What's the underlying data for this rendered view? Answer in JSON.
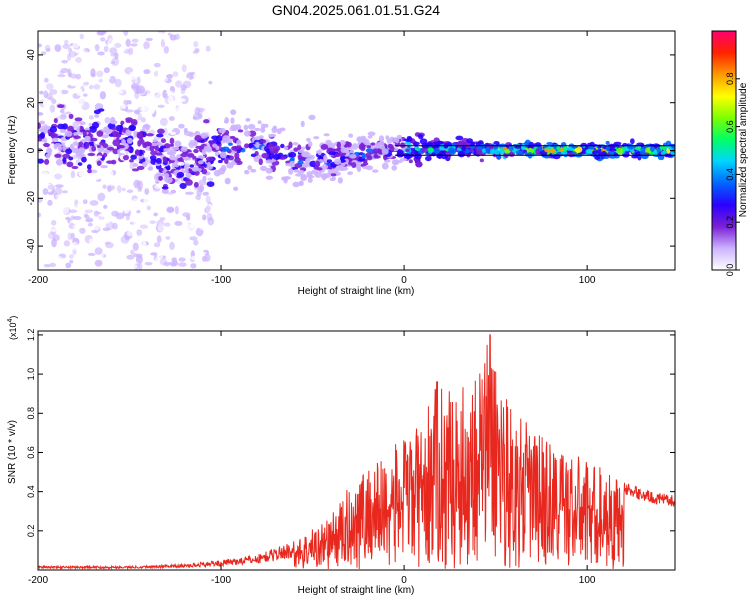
{
  "chart_data": [
    {
      "type": "heatmap",
      "title": "GN04.2025.061.01.51.G24",
      "xlabel": "Height of straight line (km)",
      "ylabel": "Frequency (Hz)",
      "xlim": [
        -200,
        148
      ],
      "ylim": [
        -50,
        50
      ],
      "x_ticks": [
        -200,
        -100,
        0,
        100
      ],
      "y_ticks": [
        -40,
        -20,
        0,
        20,
        40
      ],
      "grid": false,
      "colorbar": {
        "label": "Normalized spectral amplitude",
        "range": [
          0.0,
          1.0
        ],
        "ticks": [
          "0.0",
          "0.2",
          "0.4",
          "0.6",
          "0.8"
        ],
        "colors": [
          "#ffffff",
          "#ccb3ff",
          "#7a1fd6",
          "#2a00ff",
          "#0066ff",
          "#00d4ff",
          "#00ff66",
          "#7cff00",
          "#ffff00",
          "#ff9900",
          "#ff2200",
          "#ff006e"
        ]
      },
      "ridge_center": [
        {
          "x": -200,
          "y": 5
        },
        {
          "x": -180,
          "y": 4
        },
        {
          "x": -160,
          "y": 3
        },
        {
          "x": -140,
          "y": 1
        },
        {
          "x": -130,
          "y": -5
        },
        {
          "x": -120,
          "y": -4
        },
        {
          "x": -100,
          "y": 0
        },
        {
          "x": -80,
          "y": 2
        },
        {
          "x": -60,
          "y": -4
        },
        {
          "x": -40,
          "y": -4
        },
        {
          "x": -20,
          "y": -1
        },
        {
          "x": 0,
          "y": 1
        },
        {
          "x": 50,
          "y": 0.5
        },
        {
          "x": 100,
          "y": 0
        },
        {
          "x": 148,
          "y": 0
        }
      ],
      "reference_lines_hz": [
        2,
        -2
      ]
    },
    {
      "type": "line",
      "xlabel": "Height of straight line (km)",
      "ylabel": "SNR (10 * v/v)",
      "y_scale_note": "(x10",
      "y_scale_exponent": "4",
      "xlim": [
        -200,
        148
      ],
      "ylim": [
        0,
        1.22
      ],
      "x_ticks": [
        -200,
        -100,
        0,
        100
      ],
      "y_ticks": [
        "0.2",
        "0.4",
        "0.6",
        "0.8",
        "1.0",
        "1.2"
      ],
      "grid": false,
      "color": "#e8281e",
      "series": [
        {
          "values": [
            {
              "x": -200,
              "y": 0.02
            },
            {
              "x": -150,
              "y": 0.02
            },
            {
              "x": -120,
              "y": 0.03
            },
            {
              "x": -100,
              "y": 0.05
            },
            {
              "x": -80,
              "y": 0.08
            },
            {
              "x": -60,
              "y": 0.15
            },
            {
              "x": -40,
              "y": 0.28
            },
            {
              "x": -25,
              "y": 0.5
            },
            {
              "x": -10,
              "y": 0.6
            },
            {
              "x": 0,
              "y": 0.68
            },
            {
              "x": 10,
              "y": 0.75
            },
            {
              "x": 18,
              "y": 0.96
            },
            {
              "x": 30,
              "y": 0.9
            },
            {
              "x": 47,
              "y": 1.2
            },
            {
              "x": 60,
              "y": 0.8
            },
            {
              "x": 75,
              "y": 0.7
            },
            {
              "x": 90,
              "y": 0.6
            },
            {
              "x": 105,
              "y": 0.55
            },
            {
              "x": 120,
              "y": 0.45
            },
            {
              "x": 135,
              "y": 0.4
            },
            {
              "x": 148,
              "y": 0.38
            }
          ]
        }
      ]
    }
  ]
}
